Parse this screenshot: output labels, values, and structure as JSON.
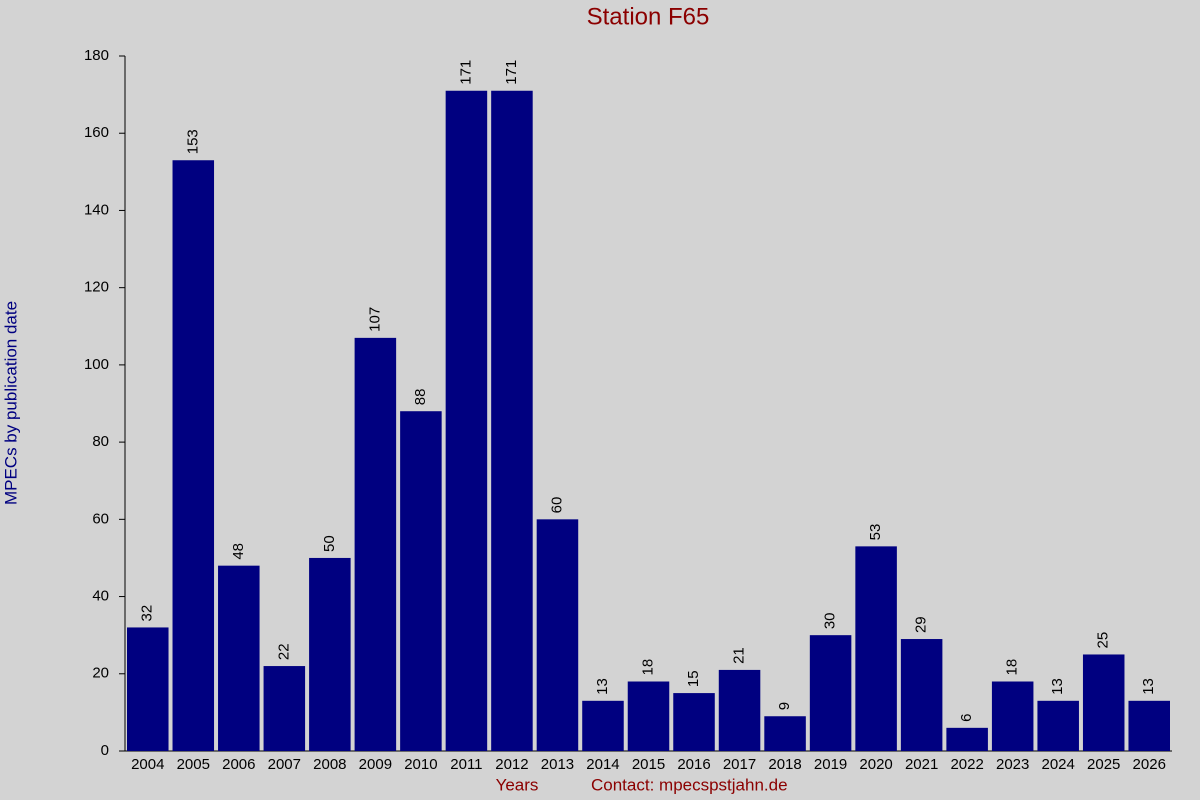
{
  "chart_data": {
    "type": "bar",
    "title": "Station F65",
    "y_label": "MPECs by publication date",
    "x_label": "Years",
    "contact": "Contact: mpecspstjahn.de",
    "categories": [
      "2004",
      "2005",
      "2006",
      "2007",
      "2008",
      "2009",
      "2010",
      "2011",
      "2012",
      "2013",
      "2014",
      "2015",
      "2016",
      "2017",
      "2018",
      "2019",
      "2020",
      "2021",
      "2022",
      "2023",
      "2024",
      "2025",
      "2026"
    ],
    "values": [
      32,
      153,
      48,
      22,
      50,
      107,
      88,
      171,
      171,
      60,
      13,
      18,
      15,
      21,
      9,
      30,
      53,
      29,
      6,
      18,
      13,
      25,
      13
    ],
    "color": "#000080",
    "ylim": [
      0,
      180
    ],
    "yticks": [
      0,
      20,
      40,
      60,
      80,
      100,
      120,
      140,
      160,
      180
    ],
    "grid": false
  }
}
